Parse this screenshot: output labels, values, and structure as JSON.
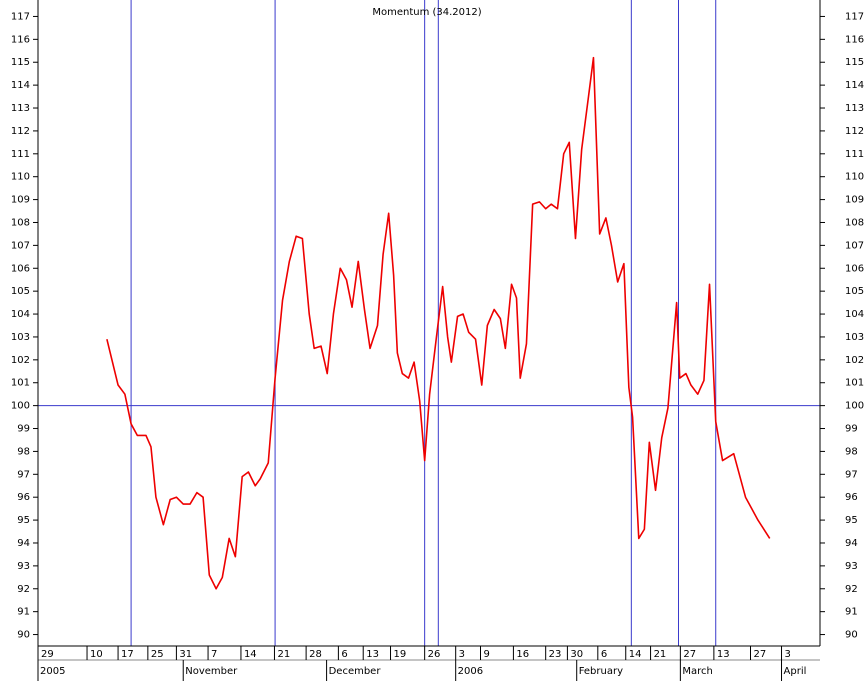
{
  "chart_data": {
    "type": "line",
    "title": "Momentum (34.2012)",
    "xlim": [
      0,
      126
    ],
    "ylim": [
      89.5,
      117.5
    ],
    "yticks": [
      90,
      91,
      92,
      93,
      94,
      95,
      96,
      97,
      98,
      99,
      100,
      101,
      102,
      103,
      104,
      105,
      106,
      107,
      108,
      109,
      110,
      111,
      112,
      113,
      114,
      115,
      116,
      117
    ],
    "xticks": [
      {
        "value": 0,
        "label": "29"
      },
      {
        "value": 7.9,
        "label": "10"
      },
      {
        "value": 12.9,
        "label": "17"
      },
      {
        "value": 17.7,
        "label": "25"
      },
      {
        "value": 22.3,
        "label": "31"
      },
      {
        "value": 27.4,
        "label": "7"
      },
      {
        "value": 32.7,
        "label": "14"
      },
      {
        "value": 38.1,
        "label": "21"
      },
      {
        "value": 43.2,
        "label": "28"
      },
      {
        "value": 48.4,
        "label": "6"
      },
      {
        "value": 52.4,
        "label": "13"
      },
      {
        "value": 56.8,
        "label": "19"
      },
      {
        "value": 62.3,
        "label": "26"
      },
      {
        "value": 67.3,
        "label": "3"
      },
      {
        "value": 71.3,
        "label": "9"
      },
      {
        "value": 76.6,
        "label": "16"
      },
      {
        "value": 81.8,
        "label": "23"
      },
      {
        "value": 85.3,
        "label": "30"
      },
      {
        "value": 90.2,
        "label": "6"
      },
      {
        "value": 94.7,
        "label": "14"
      },
      {
        "value": 98.7,
        "label": "21"
      },
      {
        "value": 103.5,
        "label": "27"
      },
      {
        "value": 108.9,
        "label": "13"
      },
      {
        "value": 114.8,
        "label": "27"
      },
      {
        "value": 119.8,
        "label": "3"
      }
    ],
    "month_ticks": [
      {
        "value": 0,
        "label": "2005"
      },
      {
        "value": 23.4,
        "label": "November"
      },
      {
        "value": 46.5,
        "label": "December"
      },
      {
        "value": 67.3,
        "label": "2006"
      },
      {
        "value": 86.8,
        "label": "February"
      },
      {
        "value": 103.5,
        "label": "March"
      },
      {
        "value": 119.8,
        "label": "April"
      }
    ],
    "reference_lines": {
      "color": "#3a3acc",
      "x": [
        15,
        38.2,
        62.3,
        64.5,
        95.6,
        103.2,
        109.2
      ],
      "y": [
        100
      ]
    },
    "series": [
      {
        "name": "Momentum",
        "color": "#ee0000",
        "x": [
          11.1,
          12.9,
          14.0,
          15.0,
          16.0,
          17.4,
          18.2,
          19.0,
          20.2,
          21.3,
          22.3,
          23.4,
          24.5,
          25.6,
          26.6,
          27.6,
          28.7,
          29.7,
          30.8,
          31.8,
          32.9,
          33.9,
          35.0,
          35.8,
          37.1,
          38.2,
          39.4,
          40.5,
          41.6,
          42.6,
          43.7,
          44.5,
          45.6,
          46.6,
          47.6,
          48.7,
          49.7,
          50.6,
          51.6,
          52.6,
          53.5,
          54.7,
          55.6,
          56.5,
          57.3,
          57.9,
          58.7,
          59.7,
          60.6,
          61.5,
          62.3,
          63.1,
          64.2,
          65.2,
          66.0,
          66.6,
          67.6,
          68.5,
          69.4,
          70.5,
          71.5,
          72.4,
          73.5,
          74.5,
          75.3,
          76.3,
          77.1,
          77.7,
          78.7,
          79.7,
          80.8,
          81.8,
          82.7,
          83.7,
          84.7,
          85.6,
          86.6,
          87.6,
          88.7,
          89.5,
          90.5,
          91.5,
          92.4,
          93.4,
          94.4,
          95.2,
          95.8,
          96.8,
          97.7,
          98.5,
          99.5,
          100.5,
          101.5,
          102.9,
          103.4,
          104.4,
          105.2,
          106.3,
          107.3,
          108.2,
          109.2,
          110.3,
          112.1,
          114.0,
          116.0,
          117.9
        ],
        "values": [
          102.9,
          100.9,
          100.5,
          99.2,
          98.7,
          98.7,
          98.2,
          96.0,
          94.8,
          95.9,
          96.0,
          95.7,
          95.7,
          96.2,
          96.0,
          92.6,
          92.0,
          92.5,
          94.2,
          93.4,
          96.9,
          97.1,
          96.5,
          96.8,
          97.5,
          101.2,
          104.6,
          106.3,
          107.4,
          107.3,
          104.0,
          102.5,
          102.6,
          101.4,
          104.0,
          106.0,
          105.5,
          104.3,
          106.3,
          104.2,
          102.5,
          103.5,
          106.6,
          108.4,
          105.7,
          102.3,
          101.4,
          101.2,
          101.9,
          100.2,
          97.6,
          100.5,
          103.0,
          105.2,
          103.0,
          101.9,
          103.9,
          104.0,
          103.2,
          102.9,
          100.9,
          103.5,
          104.2,
          103.8,
          102.5,
          105.3,
          104.7,
          101.2,
          102.7,
          108.8,
          108.9,
          108.6,
          108.8,
          108.6,
          111.0,
          111.5,
          107.3,
          111.2,
          113.5,
          115.2,
          107.5,
          108.2,
          107.0,
          105.4,
          106.2,
          100.8,
          99.5,
          94.2,
          94.6,
          98.4,
          96.3,
          98.6,
          99.9,
          104.5,
          101.2,
          101.4,
          100.9,
          100.5,
          101.1,
          105.3,
          99.3,
          97.6,
          97.9,
          96.0,
          95.0,
          94.2
        ]
      }
    ]
  }
}
